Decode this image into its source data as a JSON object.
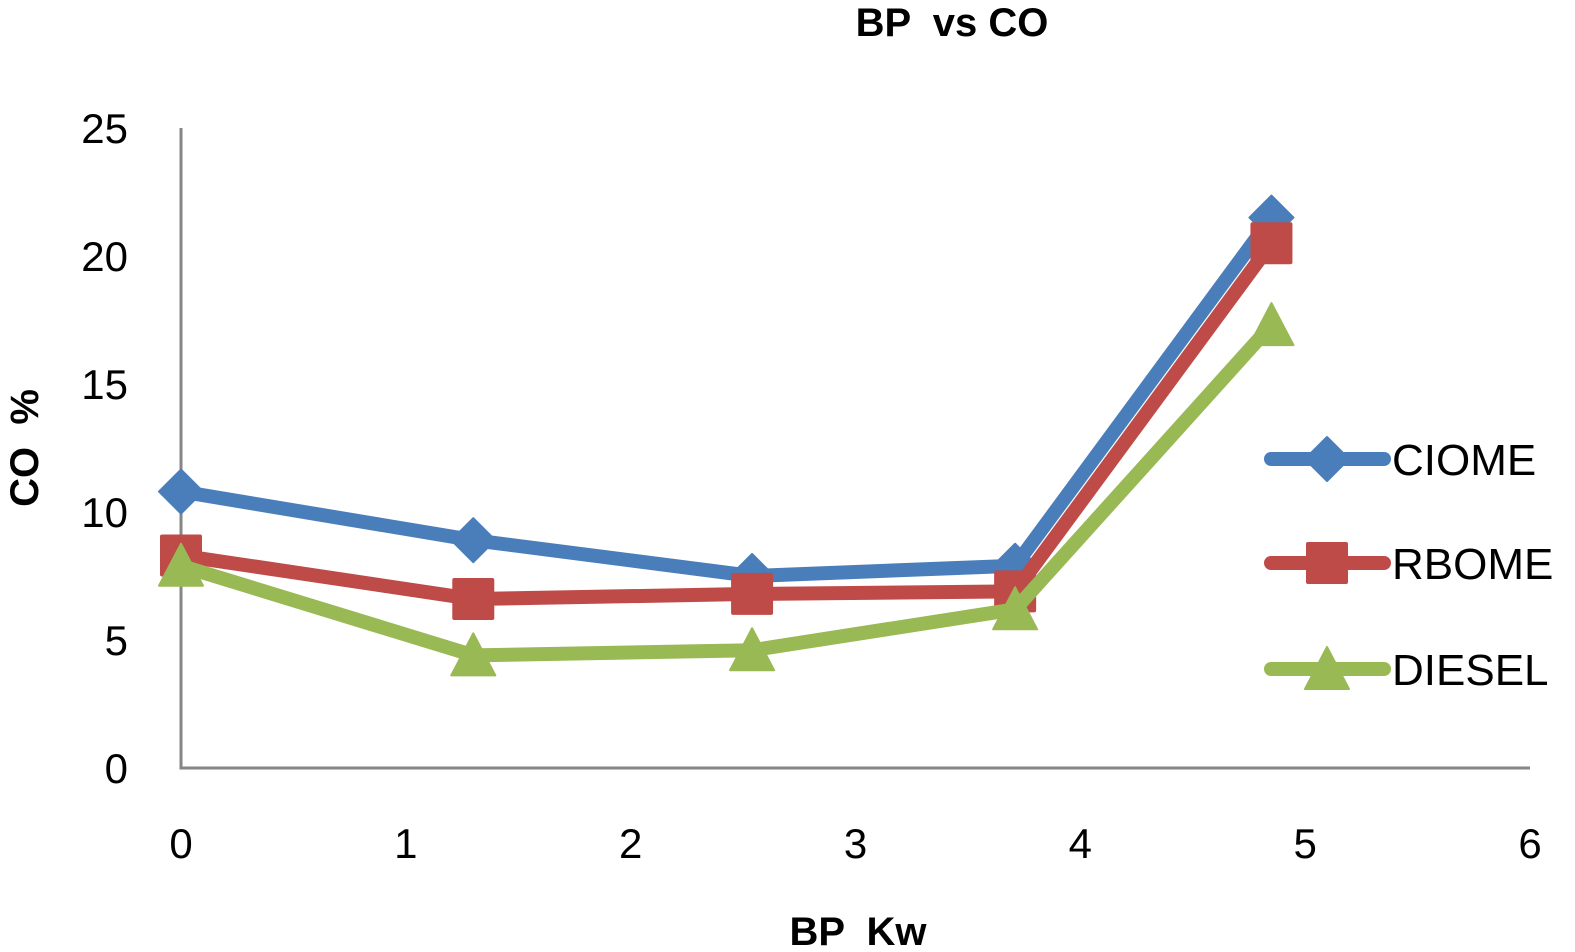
{
  "chart_data": {
    "type": "line",
    "title": "BP  vs CO",
    "xlabel": "BP  Kw",
    "ylabel": "CO  %",
    "xlim": [
      0,
      6
    ],
    "ylim": [
      0,
      25
    ],
    "x_ticks": [
      "0",
      "1",
      "2",
      "3",
      "4",
      "5",
      "6"
    ],
    "y_ticks": [
      "0",
      "5",
      "10",
      "15",
      "20",
      "25"
    ],
    "grid": false,
    "legend_position": "right",
    "x": [
      0,
      1.3,
      2.54,
      3.71,
      4.85
    ],
    "series": [
      {
        "name": "CIOME",
        "marker": "diamond",
        "color": "#4A7EBB",
        "values": [
          10.8,
          8.9,
          7.5,
          7.9,
          21.5
        ]
      },
      {
        "name": "RBOME",
        "marker": "square",
        "color": "#BE4B48",
        "values": [
          8.3,
          6.6,
          6.8,
          6.9,
          20.5
        ]
      },
      {
        "name": "DIESEL",
        "marker": "triangle",
        "color": "#98B954",
        "values": [
          7.9,
          4.4,
          4.6,
          6.2,
          17.3
        ]
      }
    ]
  }
}
